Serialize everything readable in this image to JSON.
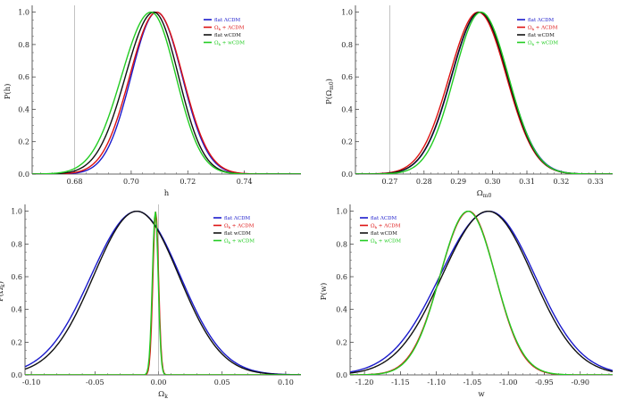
{
  "chart_data": [
    {
      "type": "line",
      "xlabel": "h",
      "ylabel": "P(h)",
      "xlim": [
        0.665,
        0.76
      ],
      "ylim": [
        0,
        1.02
      ],
      "xticks": [
        "0.68",
        "0.70",
        "0.72",
        "0.74"
      ],
      "xtick_values": [
        0.68,
        0.7,
        0.72,
        0.74
      ],
      "yticks": [
        "0.0",
        "0.2",
        "0.4",
        "0.6",
        "0.8",
        "1.0"
      ],
      "vline": 0.68,
      "legend_position": "top-right",
      "series": [
        {
          "name": "flat ΛCDM",
          "color": "#1a1acc",
          "mu": 0.709,
          "sigmaL": 0.009,
          "sigmaR": 0.009
        },
        {
          "name": "Ωk + ΛCDM",
          "color": "#dd1111",
          "mu": 0.709,
          "sigmaL": 0.0095,
          "sigmaR": 0.0092
        },
        {
          "name": "flat wCDM",
          "color": "#111111",
          "mu": 0.708,
          "sigmaL": 0.01,
          "sigmaR": 0.0087
        },
        {
          "name": "Ωk + wCDM",
          "color": "#22cc22",
          "mu": 0.707,
          "sigmaL": 0.0104,
          "sigmaR": 0.0088
        }
      ]
    },
    {
      "type": "line",
      "xlabel": "Ωm0",
      "ylabel": "P(Ωm0)",
      "xlim": [
        0.26,
        0.335
      ],
      "ylim": [
        0,
        1.02
      ],
      "xticks": [
        "0.27",
        "0.28",
        "0.29",
        "0.30",
        "0.31",
        "0.32",
        "0.33"
      ],
      "xtick_values": [
        0.27,
        0.28,
        0.29,
        0.3,
        0.31,
        0.32,
        0.33
      ],
      "yticks": [
        "0.0",
        "0.2",
        "0.4",
        "0.6",
        "0.8",
        "1.0"
      ],
      "vline": 0.27,
      "legend_position": "top-right",
      "series": [
        {
          "name": "flat ΛCDM",
          "color": "#1a1acc",
          "mu": 0.2963,
          "sigmaL": 0.0082,
          "sigmaR": 0.0082
        },
        {
          "name": "Ωk + ΛCDM",
          "color": "#dd1111",
          "mu": 0.2958,
          "sigmaL": 0.0084,
          "sigmaR": 0.0082
        },
        {
          "name": "flat wCDM",
          "color": "#111111",
          "mu": 0.2962,
          "sigmaL": 0.0082,
          "sigmaR": 0.0081
        },
        {
          "name": "Ωk + wCDM",
          "color": "#22cc22",
          "mu": 0.2966,
          "sigmaL": 0.0078,
          "sigmaR": 0.008
        }
      ]
    },
    {
      "type": "line",
      "xlabel": "Ωk",
      "ylabel": "P(Ωk)",
      "xlim": [
        -0.105,
        0.112
      ],
      "ylim": [
        0,
        1.02
      ],
      "xticks": [
        "-0.10",
        "-0.05",
        "0.00",
        "0.05",
        "0.10"
      ],
      "xtick_values": [
        -0.1,
        -0.05,
        0.0,
        0.05,
        0.1
      ],
      "yticks": [
        "0.0",
        "0.2",
        "0.4",
        "0.6",
        "0.8",
        "1.0"
      ],
      "vline": 0.0,
      "legend_position": "top-right",
      "series": [
        {
          "name": "flat ΛCDM",
          "color": "#1a1acc",
          "mu": -0.017,
          "sigmaL": 0.036,
          "sigmaR": 0.034
        },
        {
          "name": "Ωk + ΛCDM",
          "color": "#dd1111",
          "mu": -0.0022,
          "sigmaL": 0.0022,
          "sigmaR": 0.0022
        },
        {
          "name": "flat wCDM",
          "color": "#111111",
          "mu": -0.017,
          "sigmaL": 0.034,
          "sigmaR": 0.033
        },
        {
          "name": "Ωk + wCDM",
          "color": "#22cc22",
          "mu": -0.0025,
          "sigmaL": 0.0023,
          "sigmaR": 0.0022
        }
      ]
    },
    {
      "type": "line",
      "xlabel": "w",
      "ylabel": "P(w)",
      "xlim": [
        -1.22,
        -0.855
      ],
      "ylim": [
        0,
        1.02
      ],
      "xticks": [
        "-1.20",
        "-1.15",
        "-1.10",
        "-1.05",
        "-1.00",
        "-0.95",
        "-0.90"
      ],
      "xtick_values": [
        -1.2,
        -1.15,
        -1.1,
        -1.05,
        -1.0,
        -0.95,
        -0.9
      ],
      "yticks": [
        "0.0",
        "0.2",
        "0.4",
        "0.6",
        "0.8",
        "1.0"
      ],
      "legend_position": "top-left",
      "series": [
        {
          "name": "flat ΛCDM",
          "color": "#1a1acc",
          "mu": -1.027,
          "sigmaL": 0.068,
          "sigmaR": 0.064
        },
        {
          "name": "Ωk + ΛCDM",
          "color": "#dd1111",
          "mu": -1.055,
          "sigmaL": 0.04,
          "sigmaR": 0.037
        },
        {
          "name": "flat wCDM",
          "color": "#111111",
          "mu": -1.028,
          "sigmaL": 0.064,
          "sigmaR": 0.062
        },
        {
          "name": "Ωk + wCDM",
          "color": "#22cc22",
          "mu": -1.056,
          "sigmaL": 0.039,
          "sigmaR": 0.038
        }
      ]
    }
  ]
}
